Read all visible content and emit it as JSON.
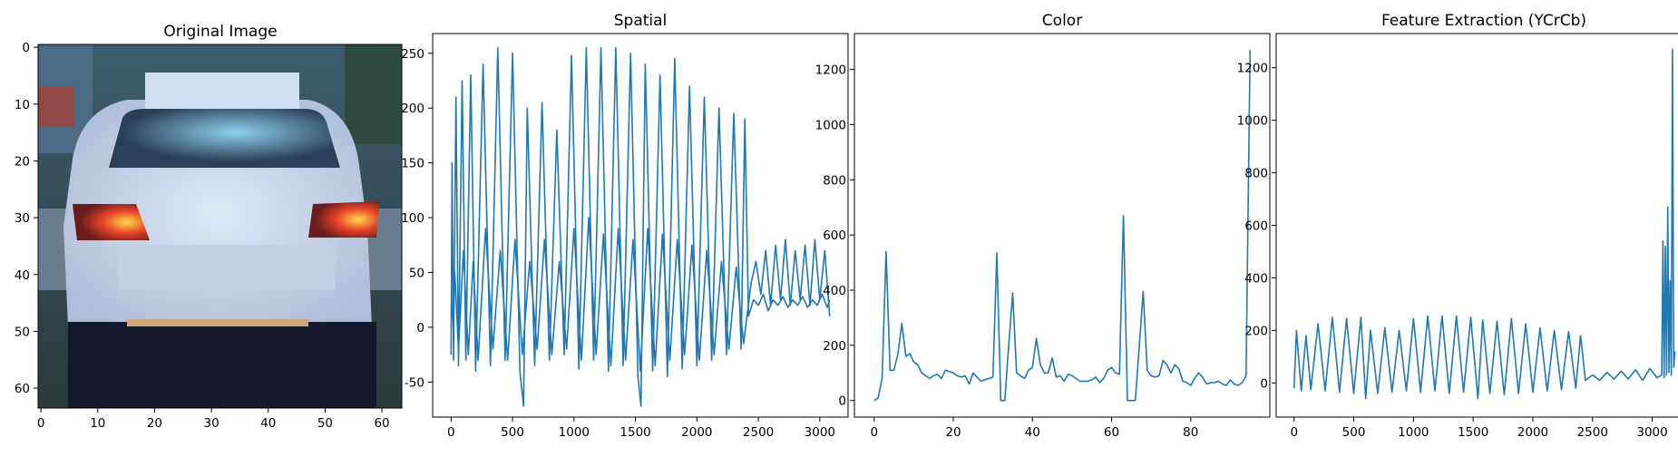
{
  "panels": [
    {
      "title": "Original Image"
    },
    {
      "title": "Spatial"
    },
    {
      "title": "Color"
    },
    {
      "title": "Feature Extraction (YCrCb)"
    }
  ],
  "colors": {
    "line": "#1f77b4"
  },
  "image_axes": {
    "x_ticks": [
      "0",
      "10",
      "20",
      "30",
      "40",
      "50",
      "60"
    ],
    "y_ticks": [
      "0",
      "10",
      "20",
      "30",
      "40",
      "50",
      "60"
    ]
  },
  "chart_data": [
    {
      "type": "line",
      "title": "Spatial",
      "xlabel": "",
      "ylabel": "",
      "xlim": [
        -150,
        3230
      ],
      "ylim": [
        -82,
        268
      ],
      "x_ticks": [
        0,
        500,
        1000,
        1500,
        2000,
        2500,
        3000
      ],
      "y_ticks": [
        -50,
        0,
        50,
        100,
        150,
        200,
        250
      ],
      "grid": false,
      "series": [
        {
          "points": [
            [
              0,
              -25
            ],
            [
              8,
              150
            ],
            [
              20,
              -30
            ],
            [
              40,
              210
            ],
            [
              60,
              -35
            ],
            [
              90,
              225
            ],
            [
              120,
              -30
            ],
            [
              160,
              230
            ],
            [
              200,
              -40
            ],
            [
              260,
              240
            ],
            [
              320,
              -35
            ],
            [
              380,
              255
            ],
            [
              440,
              -30
            ],
            [
              500,
              250
            ],
            [
              560,
              -40
            ],
            [
              590,
              -72
            ],
            [
              620,
              200
            ],
            [
              680,
              -35
            ],
            [
              740,
              205
            ],
            [
              800,
              -30
            ],
            [
              860,
              180
            ],
            [
              920,
              -25
            ],
            [
              980,
              248
            ],
            [
              1040,
              -38
            ],
            [
              1100,
              255
            ],
            [
              1160,
              -30
            ],
            [
              1220,
              255
            ],
            [
              1280,
              -40
            ],
            [
              1340,
              255
            ],
            [
              1400,
              -35
            ],
            [
              1460,
              250
            ],
            [
              1520,
              -45
            ],
            [
              1545,
              -72
            ],
            [
              1580,
              240
            ],
            [
              1640,
              -40
            ],
            [
              1700,
              230
            ],
            [
              1760,
              -45
            ],
            [
              1820,
              245
            ],
            [
              1880,
              -38
            ],
            [
              1940,
              220
            ],
            [
              2000,
              -35
            ],
            [
              2060,
              210
            ],
            [
              2120,
              -30
            ],
            [
              2180,
              200
            ],
            [
              2240,
              -25
            ],
            [
              2300,
              195
            ],
            [
              2360,
              -20
            ],
            [
              2390,
              190
            ],
            [
              2420,
              10
            ],
            [
              2460,
              25
            ],
            [
              2500,
              20
            ],
            [
              2540,
              30
            ],
            [
              2580,
              15
            ],
            [
              2620,
              25
            ],
            [
              2660,
              20
            ],
            [
              2700,
              28
            ],
            [
              2740,
              18
            ],
            [
              2780,
              25
            ],
            [
              2820,
              20
            ],
            [
              2860,
              28
            ],
            [
              2900,
              18
            ],
            [
              2940,
              25
            ],
            [
              2980,
              20
            ],
            [
              3020,
              30
            ],
            [
              3060,
              18
            ],
            [
              3080,
              25
            ]
          ]
        },
        {
          "points": [
            [
              0,
              0
            ],
            [
              30,
              50
            ],
            [
              60,
              -20
            ],
            [
              100,
              70
            ],
            [
              140,
              -25
            ],
            [
              180,
              60
            ],
            [
              220,
              -30
            ],
            [
              280,
              90
            ],
            [
              340,
              -20
            ],
            [
              400,
              70
            ],
            [
              460,
              -30
            ],
            [
              520,
              80
            ],
            [
              580,
              -25
            ],
            [
              640,
              60
            ],
            [
              700,
              -20
            ],
            [
              760,
              80
            ],
            [
              820,
              -25
            ],
            [
              880,
              60
            ],
            [
              940,
              -20
            ],
            [
              1000,
              90
            ],
            [
              1060,
              -30
            ],
            [
              1120,
              100
            ],
            [
              1180,
              -25
            ],
            [
              1240,
              85
            ],
            [
              1300,
              -35
            ],
            [
              1360,
              90
            ],
            [
              1420,
              -30
            ],
            [
              1480,
              80
            ],
            [
              1540,
              -40
            ],
            [
              1600,
              90
            ],
            [
              1660,
              -35
            ],
            [
              1720,
              85
            ],
            [
              1780,
              -30
            ],
            [
              1840,
              80
            ],
            [
              1900,
              -25
            ],
            [
              1960,
              75
            ],
            [
              2020,
              -30
            ],
            [
              2080,
              70
            ],
            [
              2140,
              -25
            ],
            [
              2200,
              60
            ],
            [
              2260,
              -20
            ],
            [
              2320,
              55
            ],
            [
              2380,
              -15
            ],
            [
              2440,
              40
            ],
            [
              2480,
              60
            ],
            [
              2520,
              30
            ],
            [
              2560,
              70
            ],
            [
              2600,
              20
            ],
            [
              2640,
              75
            ],
            [
              2680,
              25
            ],
            [
              2720,
              80
            ],
            [
              2760,
              20
            ],
            [
              2800,
              70
            ],
            [
              2840,
              25
            ],
            [
              2880,
              75
            ],
            [
              2920,
              20
            ],
            [
              2960,
              80
            ],
            [
              3000,
              25
            ],
            [
              3040,
              70
            ],
            [
              3080,
              10
            ]
          ]
        }
      ]
    },
    {
      "type": "line",
      "title": "Color",
      "xlabel": "",
      "ylabel": "",
      "xlim": [
        -5,
        100
      ],
      "ylim": [
        -60,
        1330
      ],
      "x_ticks": [
        0,
        20,
        40,
        60,
        80
      ],
      "y_ticks": [
        0,
        200,
        400,
        600,
        800,
        1000,
        1200
      ],
      "grid": false,
      "series": [
        {
          "values": [
            0,
            10,
            80,
            540,
            110,
            110,
            170,
            280,
            160,
            170,
            140,
            130,
            100,
            90,
            80,
            90,
            95,
            80,
            110,
            105,
            100,
            90,
            85,
            90,
            60,
            100,
            85,
            70,
            75,
            80,
            85,
            535,
            0,
            0,
            200,
            390,
            100,
            90,
            80,
            110,
            120,
            225,
            130,
            100,
            100,
            155,
            85,
            90,
            70,
            95,
            90,
            80,
            70,
            70,
            70,
            75,
            85,
            65,
            80,
            110,
            120,
            100,
            95,
            670,
            0,
            0,
            0,
            200,
            395,
            110,
            90,
            85,
            90,
            145,
            130,
            100,
            130,
            115,
            70,
            65,
            55,
            80,
            100,
            85,
            60,
            65,
            65,
            70,
            60,
            55,
            75,
            60,
            55,
            65,
            90,
            1270
          ]
        }
      ]
    },
    {
      "type": "line",
      "title": "Feature Extraction (YCrCb)",
      "xlabel": "",
      "ylabel": "",
      "xlim": [
        -150,
        3330
      ],
      "ylim": [
        -130,
        1330
      ],
      "x_ticks": [
        0,
        500,
        1000,
        1500,
        2000,
        2500,
        3000
      ],
      "y_ticks": [
        0,
        200,
        400,
        600,
        800,
        1000,
        1200
      ],
      "grid": false,
      "series": [
        {
          "points": [
            [
              0,
              -20
            ],
            [
              20,
              200
            ],
            [
              60,
              -30
            ],
            [
              100,
              180
            ],
            [
              140,
              -25
            ],
            [
              200,
              225
            ],
            [
              260,
              -30
            ],
            [
              320,
              250
            ],
            [
              380,
              -35
            ],
            [
              440,
              245
            ],
            [
              500,
              -40
            ],
            [
              560,
              250
            ],
            [
              600,
              -60
            ],
            [
              640,
              200
            ],
            [
              700,
              -40
            ],
            [
              760,
              210
            ],
            [
              820,
              -35
            ],
            [
              880,
              200
            ],
            [
              940,
              -30
            ],
            [
              1000,
              245
            ],
            [
              1060,
              -35
            ],
            [
              1120,
              255
            ],
            [
              1180,
              -30
            ],
            [
              1240,
              255
            ],
            [
              1300,
              -40
            ],
            [
              1360,
              255
            ],
            [
              1420,
              -35
            ],
            [
              1480,
              250
            ],
            [
              1540,
              -60
            ],
            [
              1580,
              240
            ],
            [
              1640,
              -40
            ],
            [
              1700,
              235
            ],
            [
              1760,
              -45
            ],
            [
              1820,
              245
            ],
            [
              1880,
              -40
            ],
            [
              1940,
              225
            ],
            [
              2000,
              -35
            ],
            [
              2060,
              210
            ],
            [
              2120,
              -30
            ],
            [
              2180,
              200
            ],
            [
              2240,
              -25
            ],
            [
              2300,
              195
            ],
            [
              2360,
              -20
            ],
            [
              2400,
              180
            ],
            [
              2440,
              10
            ],
            [
              2500,
              30
            ],
            [
              2560,
              10
            ],
            [
              2620,
              40
            ],
            [
              2680,
              15
            ],
            [
              2740,
              45
            ],
            [
              2800,
              15
            ],
            [
              2860,
              50
            ],
            [
              2920,
              10
            ],
            [
              2980,
              55
            ],
            [
              3040,
              20
            ],
            [
              3080,
              30
            ],
            [
              3090,
              540
            ],
            [
              3100,
              20
            ],
            [
              3110,
              520
            ],
            [
              3120,
              30
            ],
            [
              3130,
              670
            ],
            [
              3140,
              40
            ],
            [
              3150,
              390
            ],
            [
              3160,
              30
            ],
            [
              3170,
              1270
            ],
            [
              3180,
              60
            ],
            [
              3190,
              120
            ]
          ]
        }
      ]
    }
  ]
}
